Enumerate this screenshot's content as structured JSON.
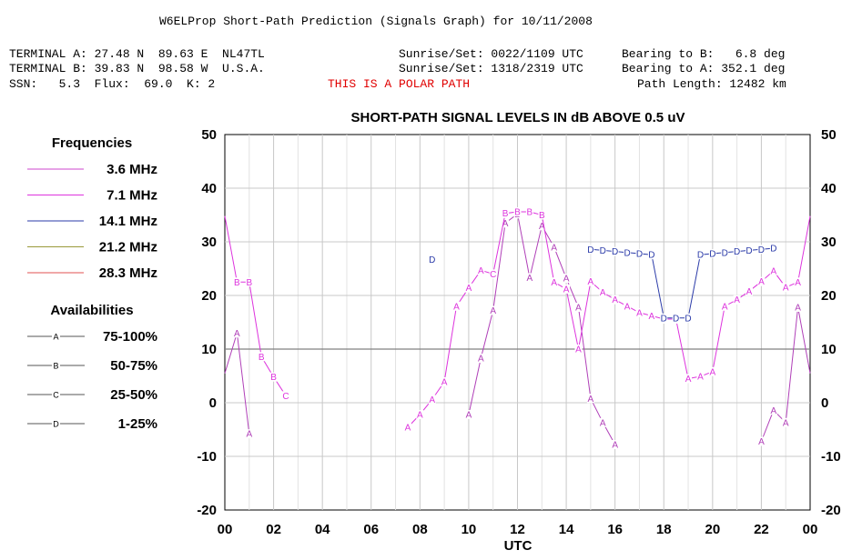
{
  "header": {
    "title": "W6ELProp Short-Path Prediction (Signals Graph) for 10/11/2008",
    "terminal_a": "TERMINAL A: 27.48 N  89.63 E  NL47TL",
    "terminal_b": "TERMINAL B: 39.83 N  98.58 W  U.S.A.",
    "ssn_line": "SSN:   5.3  Flux:  69.0  K: 2",
    "sun_a": "Sunrise/Set: 0022/1109 UTC",
    "sun_b": "Sunrise/Set: 1318/2319 UTC",
    "bearing_b": "Bearing to B:   6.8 deg",
    "bearing_a": "Bearing to A: 352.1 deg",
    "polar_note": "THIS IS A POLAR PATH",
    "path_length": "Path Length: 12482 km",
    "polar_color": "#e00000"
  },
  "legend": {
    "frequencies_title": "Frequencies",
    "frequencies": [
      {
        "label": "3.6 MHz",
        "color": "#cc44cc"
      },
      {
        "label": "7.1 MHz",
        "color": "#dd33dd"
      },
      {
        "label": "14.1 MHz",
        "color": "#2a3aa8"
      },
      {
        "label": "21.2 MHz",
        "color": "#9a9a3a"
      },
      {
        "label": "28.3 MHz",
        "color": "#e05050"
      }
    ],
    "availabilities_title": "Availabilities",
    "availabilities": [
      {
        "marker": "A",
        "label": "75-100%"
      },
      {
        "marker": "B",
        "label": "50-75%"
      },
      {
        "marker": "C",
        "label": "25-50%"
      },
      {
        "marker": "D",
        "label": "1-25%"
      }
    ]
  },
  "chart_data": {
    "type": "line",
    "title": "SHORT-PATH SIGNAL LEVELS IN dB ABOVE 0.5 uV",
    "xlabel": "UTC",
    "ylabel": "",
    "xlim": [
      0,
      24
    ],
    "ylim": [
      -20,
      50
    ],
    "x_ticks": [
      "00",
      "02",
      "04",
      "06",
      "08",
      "10",
      "12",
      "14",
      "16",
      "18",
      "20",
      "22",
      "00"
    ],
    "y_ticks": [
      "50",
      "40",
      "30",
      "20",
      "10",
      "0",
      "-10",
      "-20"
    ],
    "grid": true,
    "reference_line_y": 10,
    "series": [
      {
        "name": "3.6 MHz",
        "color": "#b040b8",
        "segments": [
          [
            [
              0.0,
              5.5,
              ""
            ],
            [
              0.5,
              13.0,
              "A"
            ],
            [
              1.0,
              -5.8,
              "A"
            ]
          ],
          [
            [
              10.0,
              -2.2,
              "A"
            ],
            [
              10.5,
              8.3,
              "A"
            ],
            [
              11.0,
              17.2,
              "A"
            ],
            [
              11.5,
              33.5,
              "A"
            ],
            [
              12.0,
              35.2,
              "B"
            ],
            [
              12.5,
              23.3,
              "A"
            ],
            [
              13.0,
              33.0,
              "A"
            ],
            [
              13.5,
              29.0,
              "A"
            ],
            [
              14.0,
              23.2,
              "A"
            ],
            [
              14.5,
              17.8,
              "A"
            ],
            [
              15.0,
              0.8,
              "A"
            ],
            [
              15.5,
              -3.7,
              "A"
            ],
            [
              16.0,
              -7.8,
              "A"
            ]
          ],
          [
            [
              22.0,
              -7.2,
              "A"
            ],
            [
              22.5,
              -1.4,
              "A"
            ],
            [
              23.0,
              -3.7,
              "A"
            ],
            [
              23.5,
              17.8,
              "A"
            ],
            [
              24.0,
              5.5,
              ""
            ]
          ]
        ]
      },
      {
        "name": "7.1 MHz",
        "color": "#dd33dd",
        "segments": [
          [
            [
              0.0,
              34.8,
              ""
            ],
            [
              0.5,
              22.5,
              "B"
            ],
            [
              1.0,
              22.5,
              "B"
            ],
            [
              1.5,
              8.6,
              "B"
            ],
            [
              2.0,
              4.8,
              "B"
            ],
            [
              2.5,
              1.3,
              "C"
            ]
          ],
          [
            [
              7.5,
              -4.6,
              "A"
            ],
            [
              8.0,
              -2.2,
              "A"
            ],
            [
              8.5,
              0.6,
              "A"
            ],
            [
              9.0,
              3.9,
              "A"
            ],
            [
              9.5,
              18.0,
              "A"
            ],
            [
              10.0,
              21.4,
              "A"
            ],
            [
              10.5,
              24.7,
              "A"
            ],
            [
              11.0,
              24.0,
              "C"
            ],
            [
              11.5,
              35.3,
              "B"
            ],
            [
              12.0,
              35.6,
              "B"
            ],
            [
              12.5,
              35.6,
              "B"
            ],
            [
              13.0,
              35.0,
              "B"
            ],
            [
              13.5,
              22.5,
              "A"
            ],
            [
              14.0,
              21.2,
              "A"
            ],
            [
              14.5,
              10.0,
              "A"
            ],
            [
              15.0,
              22.6,
              "A"
            ],
            [
              15.5,
              20.6,
              "A"
            ],
            [
              16.0,
              19.2,
              "A"
            ],
            [
              16.5,
              18.0,
              "A"
            ],
            [
              17.0,
              16.8,
              "A"
            ],
            [
              17.5,
              16.2,
              "A"
            ],
            [
              18.0,
              15.6,
              "A"
            ],
            [
              18.5,
              15.6,
              "A"
            ],
            [
              19.0,
              4.5,
              "A"
            ],
            [
              19.5,
              4.9,
              "A"
            ],
            [
              20.0,
              5.8,
              "A"
            ],
            [
              20.5,
              18.0,
              "A"
            ],
            [
              21.0,
              19.2,
              "A"
            ],
            [
              21.5,
              20.8,
              "A"
            ],
            [
              22.0,
              22.6,
              "A"
            ],
            [
              22.5,
              24.6,
              "A"
            ],
            [
              23.0,
              21.5,
              "A"
            ],
            [
              23.5,
              22.5,
              "A"
            ],
            [
              24.0,
              34.8,
              ""
            ]
          ]
        ]
      },
      {
        "name": "14.1 MHz",
        "color": "#2a3aa8",
        "segments": [
          [
            [
              8.5,
              26.7,
              "D"
            ]
          ],
          [
            [
              15.0,
              28.6,
              "D"
            ],
            [
              15.5,
              28.4,
              "D"
            ],
            [
              16.0,
              28.2,
              "D"
            ],
            [
              16.5,
              28.0,
              "D"
            ],
            [
              17.0,
              27.8,
              "D"
            ],
            [
              17.5,
              27.6,
              "D"
            ],
            [
              18.0,
              15.8,
              "D"
            ],
            [
              18.5,
              15.8,
              "D"
            ],
            [
              19.0,
              15.8,
              "D"
            ],
            [
              19.5,
              27.6,
              "D"
            ],
            [
              20.0,
              27.8,
              "D"
            ],
            [
              20.5,
              28.0,
              "D"
            ],
            [
              21.0,
              28.2,
              "D"
            ],
            [
              21.5,
              28.4,
              "D"
            ],
            [
              22.0,
              28.6,
              "D"
            ],
            [
              22.5,
              28.8,
              "D"
            ]
          ]
        ]
      }
    ]
  }
}
